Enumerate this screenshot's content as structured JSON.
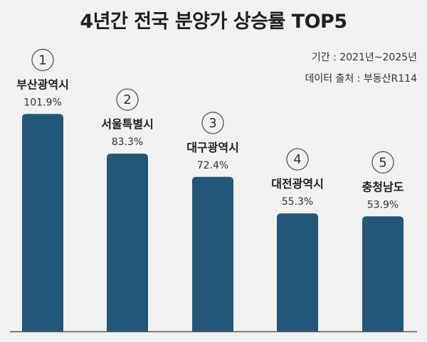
{
  "title": "4년간 전국 분양가 상승률 TOP5",
  "period": "기간 : 2021년~2025년",
  "source": "데이터 출처 : 부동산R114",
  "colors": {
    "bar": "#22577a",
    "background": "#f1f1f1",
    "axis": "#555555"
  },
  "chart_data": {
    "type": "bar",
    "title": "4년간 전국 분양가 상승률 TOP5",
    "categories": [
      "부산광역시",
      "서울특별시",
      "대구광역시",
      "대전광역시",
      "충청남도"
    ],
    "ranks": [
      "1",
      "2",
      "3",
      "4",
      "5"
    ],
    "values": [
      101.9,
      83.3,
      72.4,
      55.3,
      53.9
    ],
    "value_labels": [
      "101.9%",
      "83.3%",
      "72.4%",
      "55.3%",
      "53.9%"
    ],
    "unit": "%",
    "ylim": [
      0,
      110
    ],
    "grid": false,
    "legend": "none"
  }
}
